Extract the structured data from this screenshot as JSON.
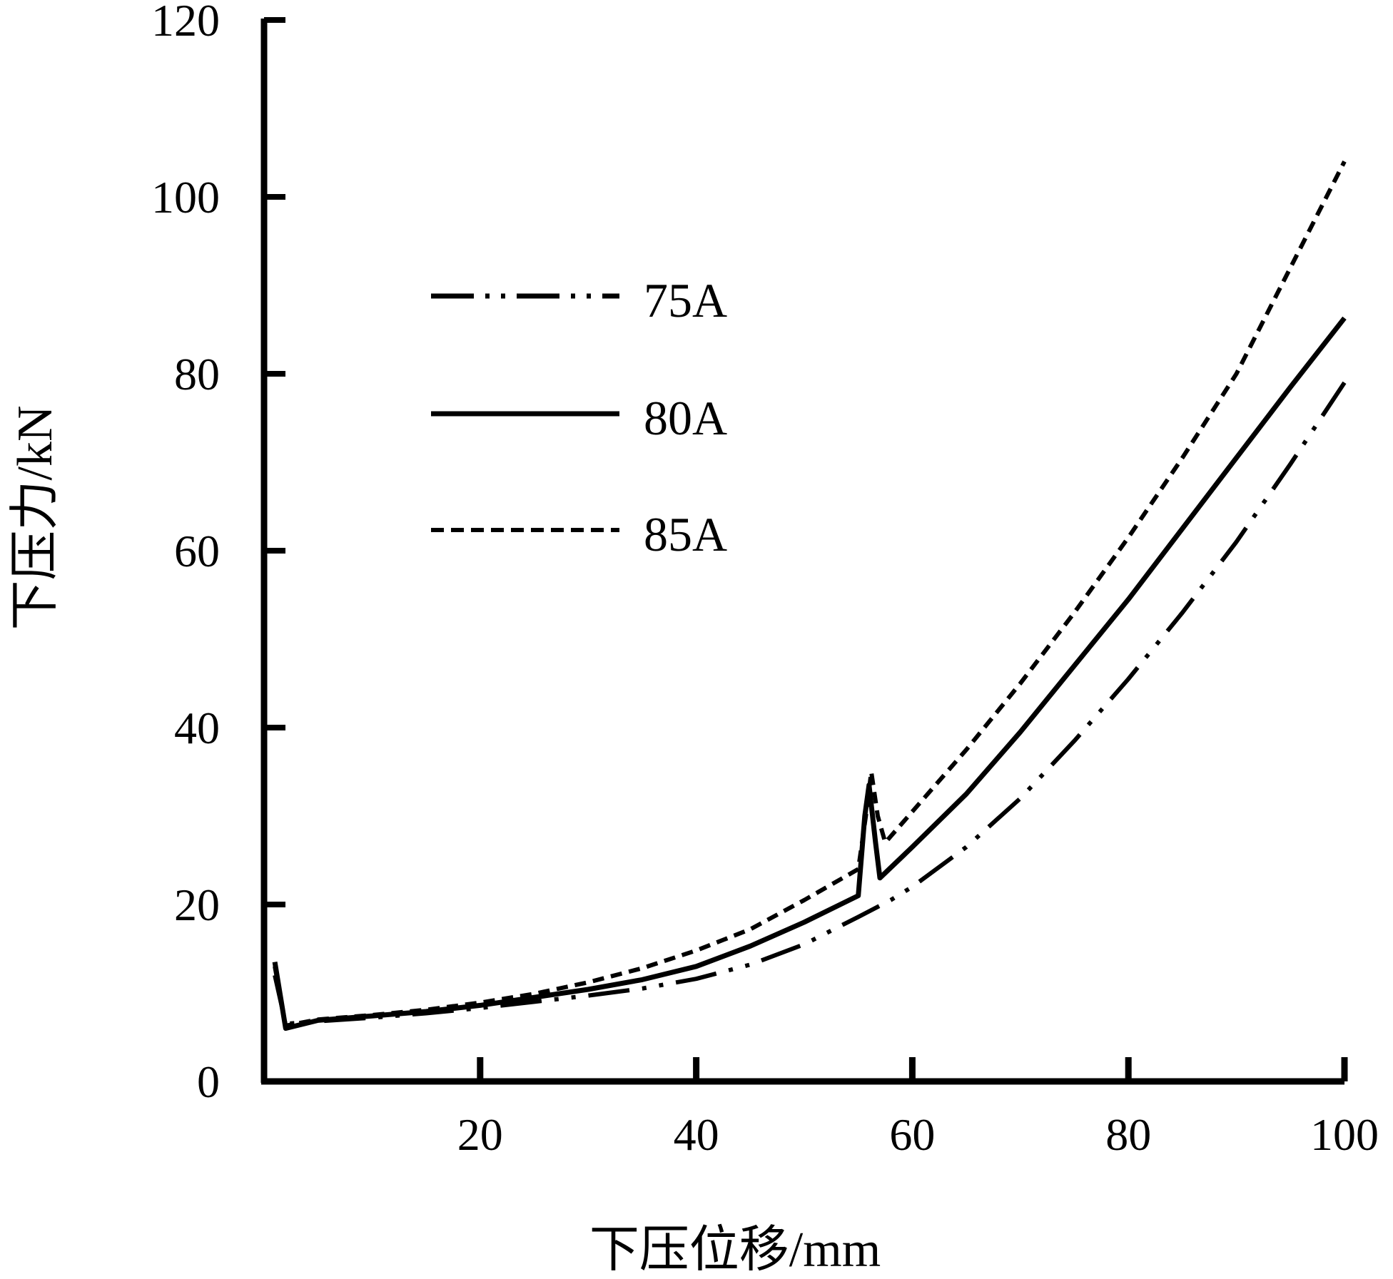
{
  "chart_data": {
    "type": "line",
    "xlabel": "下压位移/mm",
    "ylabel": "下压力/kN",
    "xlim": [
      0,
      100
    ],
    "ylim": [
      0,
      120
    ],
    "xticks": [
      20,
      40,
      60,
      80,
      100
    ],
    "yticks": [
      0,
      20,
      40,
      60,
      80,
      100,
      120
    ],
    "grid": false,
    "legend_position": "upper-left",
    "series": [
      {
        "name": "75A",
        "style": "dash-dot-dot",
        "color": "#000000",
        "x": [
          1,
          2,
          5,
          10,
          15,
          20,
          25,
          30,
          35,
          40,
          45,
          50,
          55,
          58,
          60,
          65,
          70,
          75,
          80,
          85,
          90,
          95,
          100
        ],
        "y": [
          12,
          6.5,
          6.8,
          7.2,
          7.7,
          8.3,
          9.0,
          9.7,
          10.5,
          11.6,
          13.2,
          15.5,
          18.6,
          20.5,
          22.0,
          26.5,
          32.0,
          38.5,
          45.5,
          53.0,
          61.0,
          69.8,
          79.0
        ]
      },
      {
        "name": "80A",
        "color": "#000000",
        "style": "solid",
        "x": [
          1,
          2,
          5,
          10,
          15,
          20,
          25,
          30,
          35,
          40,
          45,
          50,
          55,
          55.6,
          56,
          56.6,
          57,
          60,
          65,
          70,
          75,
          80,
          85,
          90,
          95,
          100
        ],
        "y": [
          13.5,
          6.0,
          6.9,
          7.4,
          7.9,
          8.6,
          9.5,
          10.4,
          11.5,
          13.0,
          15.3,
          18.0,
          21.0,
          30.0,
          33.5,
          27.0,
          23.0,
          26.5,
          32.5,
          39.5,
          47.0,
          54.5,
          62.5,
          70.5,
          78.5,
          86.3
        ]
      },
      {
        "name": "85A",
        "color": "#000000",
        "style": "dashed",
        "x": [
          1,
          2,
          5,
          10,
          15,
          20,
          25,
          30,
          35,
          40,
          45,
          50,
          55,
          55.7,
          56.2,
          56.8,
          57.5,
          60,
          65,
          70,
          75,
          80,
          85,
          90,
          95,
          100
        ],
        "y": [
          13.0,
          6.3,
          7.0,
          7.5,
          8.1,
          8.9,
          9.9,
          11.2,
          12.8,
          14.8,
          17.2,
          20.5,
          24.0,
          30.0,
          35.0,
          30.0,
          27.0,
          30.5,
          37.5,
          45.0,
          53.0,
          61.5,
          70.5,
          80.0,
          92.0,
          104.0
        ]
      }
    ]
  }
}
